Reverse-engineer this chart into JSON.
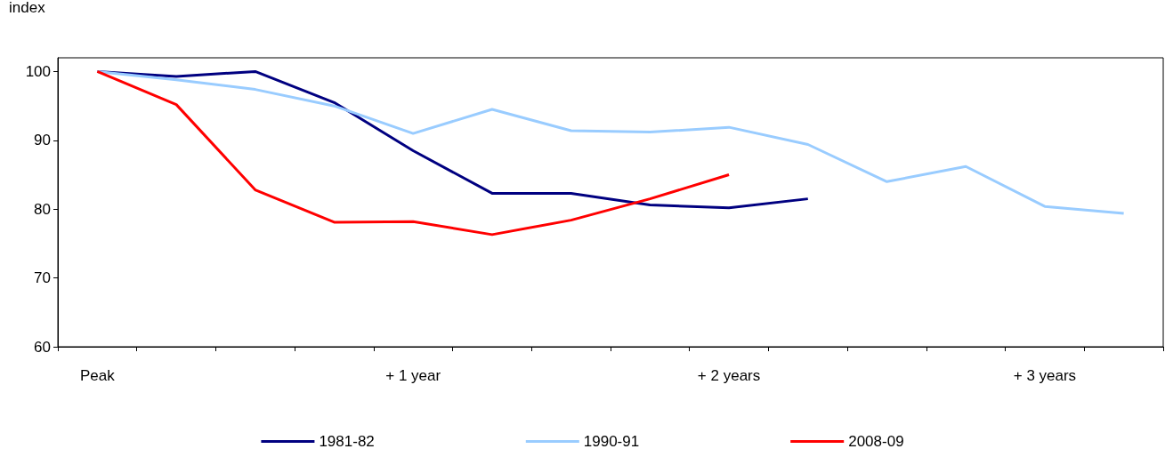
{
  "chart_data": {
    "type": "line",
    "ylabel": "index",
    "categories": [
      "Peak",
      null,
      null,
      null,
      "+ 1 year",
      null,
      null,
      null,
      "+ 2 years",
      null,
      null,
      null,
      "+ 3 years",
      null
    ],
    "series": [
      {
        "name": "1981-82",
        "color": "#000080",
        "values": [
          100,
          99.3,
          100,
          95.5,
          88.5,
          82.3,
          82.3,
          80.6,
          80.2,
          81.5,
          null,
          null,
          null,
          null
        ]
      },
      {
        "name": "1990-91",
        "color": "#99ccff",
        "values": [
          100,
          98.8,
          97.4,
          95,
          91,
          94.5,
          91.4,
          91.2,
          91.9,
          89.4,
          84,
          86.2,
          80.4,
          79.4
        ]
      },
      {
        "name": "2008-09",
        "color": "#ff0000",
        "values": [
          100,
          95.2,
          82.8,
          78.1,
          78.2,
          76.3,
          78.4,
          81.5,
          85,
          null,
          null,
          null,
          null,
          null
        ]
      }
    ],
    "ylim": [
      60,
      102
    ],
    "yticks": [
      60,
      70,
      80,
      90,
      100
    ],
    "grid": false,
    "legend": "bottom",
    "marker": "none",
    "line_style": "solid"
  }
}
